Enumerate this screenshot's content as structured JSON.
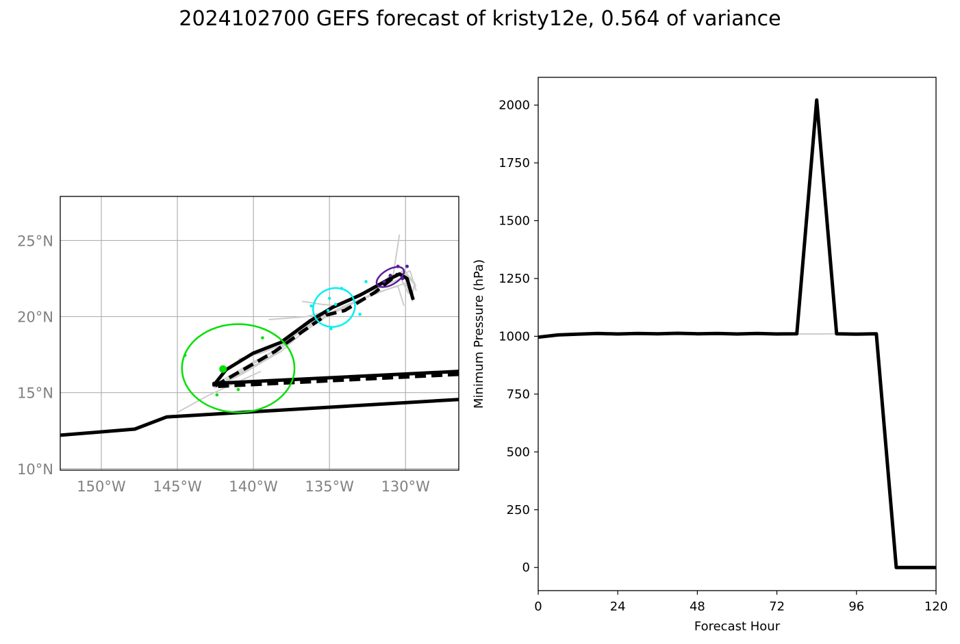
{
  "title": "2024102700 GEFS forecast of kristy12e, 0.564 of variance",
  "chart_data": [
    {
      "type": "map",
      "xlim": [
        -152.7,
        -126.5
      ],
      "ylim": [
        9.9,
        27.9
      ],
      "grid": true,
      "x_ticks": [
        {
          "value": -150,
          "label": "150°W"
        },
        {
          "value": -145,
          "label": "145°W"
        },
        {
          "value": -140,
          "label": "140°W"
        },
        {
          "value": -135,
          "label": "135°W"
        },
        {
          "value": -130,
          "label": "130°W"
        }
      ],
      "y_ticks": [
        {
          "value": 10,
          "label": "10°N"
        },
        {
          "value": 15,
          "label": "15°N"
        },
        {
          "value": 20,
          "label": "20°N"
        },
        {
          "value": 25,
          "label": "25°N"
        }
      ],
      "colors": {
        "track": "#000000",
        "members": "#cccccc",
        "green": "#00e000",
        "cyan": "#00f0f0",
        "purple": "#5a1c9a"
      },
      "member_tracks": [
        [
          [
            -142.5,
            15.4
          ],
          [
            -140.5,
            16.6
          ],
          [
            -138.5,
            17.8
          ],
          [
            -137.0,
            19.2
          ],
          [
            -135.5,
            20.2
          ],
          [
            -133.5,
            21.2
          ],
          [
            -131.5,
            22.0
          ],
          [
            -130.3,
            22.5
          ],
          [
            -129.8,
            21.5
          ]
        ],
        [
          [
            -142.3,
            15.5
          ],
          [
            -140.3,
            16.5
          ],
          [
            -138.2,
            17.7
          ],
          [
            -136.7,
            19.0
          ],
          [
            -135.2,
            20.0
          ],
          [
            -133.2,
            21.0
          ],
          [
            -131.2,
            21.8
          ],
          [
            -130.0,
            22.2
          ],
          [
            -129.5,
            21.0
          ]
        ],
        [
          [
            -142.6,
            15.3
          ],
          [
            -140.6,
            16.3
          ],
          [
            -138.6,
            17.5
          ],
          [
            -137.2,
            18.8
          ],
          [
            -135.7,
            19.9
          ],
          [
            -133.8,
            20.8
          ],
          [
            -131.8,
            21.6
          ],
          [
            -130.5,
            22.0
          ],
          [
            -130.1,
            20.7
          ]
        ],
        [
          [
            -142.4,
            15.6
          ],
          [
            -140.2,
            16.9
          ],
          [
            -138.0,
            18.1
          ],
          [
            -136.5,
            19.4
          ],
          [
            -135.0,
            20.5
          ],
          [
            -133.0,
            21.5
          ],
          [
            -131.0,
            22.3
          ],
          [
            -130.2,
            23.0
          ],
          [
            -129.3,
            22.0
          ]
        ],
        [
          [
            -142.5,
            15.4
          ],
          [
            -141.0,
            16.2
          ],
          [
            -139.0,
            17.3
          ],
          [
            -137.5,
            18.6
          ],
          [
            -136.0,
            19.6
          ],
          [
            -134.0,
            20.6
          ],
          [
            -132.0,
            21.6
          ],
          [
            -130.8,
            22.8
          ],
          [
            -130.4,
            25.4
          ]
        ],
        [
          [
            -141.0,
            17.2
          ],
          [
            -139.5,
            17.6
          ],
          [
            -138.2,
            18.1
          ],
          [
            -136.8,
            19.2
          ]
        ],
        [
          [
            -139.0,
            19.8
          ],
          [
            -136.5,
            20.0
          ],
          [
            -135.0,
            20.4
          ]
        ],
        [
          [
            -136.8,
            21.0
          ],
          [
            -135.5,
            20.8
          ],
          [
            -134.3,
            20.7
          ]
        ],
        [
          [
            -145.0,
            13.7
          ],
          [
            -143.0,
            14.8
          ],
          [
            -141.5,
            15.5
          ],
          [
            -139.5,
            16.4
          ]
        ],
        [
          [
            -131.2,
            22.6
          ],
          [
            -130.0,
            22.9
          ],
          [
            -129.4,
            22.2
          ],
          [
            -129.6,
            21.2
          ]
        ],
        [
          [
            -131.0,
            22.4
          ],
          [
            -129.7,
            23.0
          ],
          [
            -129.3,
            21.7
          ]
        ]
      ],
      "mean_track": [
        [
          -126.5,
          14.55
        ],
        [
          -145.7,
          13.4
        ],
        [
          -147.8,
          12.6
        ],
        [
          -152.7,
          12.2
        ]
      ],
      "ensemble_mean_solid": [
        [
          -126.5,
          16.4
        ],
        [
          -142.6,
          15.6
        ],
        [
          -142.6,
          15.5
        ],
        [
          -141.8,
          16.5
        ],
        [
          -140.0,
          17.6
        ],
        [
          -138.2,
          18.3
        ],
        [
          -136.3,
          19.7
        ],
        [
          -134.8,
          20.6
        ],
        [
          -133.0,
          21.4
        ],
        [
          -131.0,
          22.5
        ],
        [
          -130.4,
          22.8
        ],
        [
          -129.9,
          22.5
        ],
        [
          -129.5,
          21.1
        ]
      ],
      "ensemble_mean_dashed": [
        [
          -126.5,
          16.2
        ],
        [
          -142.6,
          15.4
        ],
        [
          -138.6,
          17.7
        ],
        [
          -136.8,
          19.0
        ],
        [
          -135.2,
          20.1
        ],
        [
          -134.0,
          20.4
        ],
        [
          -132.0,
          21.6
        ],
        [
          -130.5,
          22.8
        ]
      ],
      "green_ellipse": {
        "cx": -141.0,
        "cy": 16.6,
        "rx": 3.7,
        "ry": 2.9,
        "angle": 0
      },
      "cyan_ellipse": {
        "cx": -134.7,
        "cy": 20.6,
        "rx": 1.4,
        "ry": 1.25,
        "angle": -25
      },
      "purple_ellipse": {
        "cx": -131.0,
        "cy": 22.6,
        "rx": 1.0,
        "ry": 0.5,
        "angle": -30
      },
      "green_points": [
        [
          -144.5,
          17.45
        ],
        [
          -139.4,
          18.6
        ],
        [
          -142.4,
          14.85
        ],
        [
          -141.0,
          15.2
        ],
        [
          -142.0,
          16.55
        ]
      ],
      "cyan_points": [
        [
          -136.2,
          20.7
        ],
        [
          -134.2,
          21.85
        ],
        [
          -133.0,
          20.15
        ],
        [
          -134.9,
          19.2
        ],
        [
          -132.6,
          22.3
        ],
        [
          -135.1,
          20.4
        ],
        [
          -134.6,
          20.8
        ],
        [
          -135.0,
          21.2
        ]
      ],
      "purple_points": [
        [
          -131.4,
          22.3
        ],
        [
          -130.5,
          23.3
        ],
        [
          -130.2,
          22.5
        ],
        [
          -131.0,
          22.7
        ],
        [
          -129.9,
          23.3
        ]
      ]
    },
    {
      "type": "line",
      "xlabel": "Forecast Hour",
      "ylabel": "Minimum Pressure (hPa)",
      "xlim": [
        0,
        120
      ],
      "ylim": [
        -100,
        2120
      ],
      "x_ticks": [
        0,
        24,
        48,
        72,
        96,
        120
      ],
      "y_ticks": [
        0,
        250,
        500,
        750,
        1000,
        1250,
        1500,
        1750,
        2000
      ],
      "series": [
        {
          "role": "members",
          "color": "#cccccc",
          "x": [
            0,
            6,
            12,
            18,
            24,
            30,
            36,
            42,
            48,
            54,
            60,
            66,
            72,
            78,
            84,
            90,
            96
          ],
          "values": [
            996,
            1006,
            1009,
            1011,
            1010,
            1011,
            1010,
            1011,
            1010,
            1011,
            1010,
            1011,
            1010,
            1010,
            1010,
            1011,
            1011
          ]
        },
        {
          "role": "mean",
          "color": "#000000",
          "x": [
            0,
            6,
            12,
            18,
            24,
            30,
            36,
            42,
            48,
            54,
            60,
            66,
            72,
            78,
            84,
            90,
            96,
            102,
            108,
            114,
            120
          ],
          "values": [
            996,
            1006,
            1009,
            1012,
            1010,
            1012,
            1011,
            1013,
            1011,
            1012,
            1010,
            1012,
            1010,
            1011,
            2022,
            1011,
            1009,
            1011,
            0,
            0,
            0
          ]
        }
      ]
    }
  ]
}
